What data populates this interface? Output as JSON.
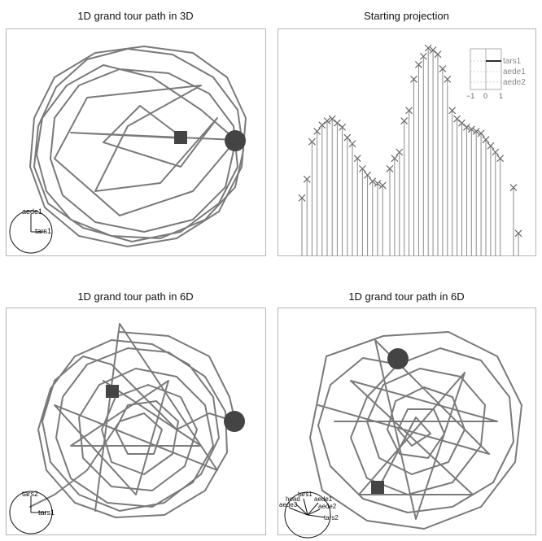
{
  "panels": [
    {
      "title": "1D grand tour path in 3D",
      "axes_labels": [
        "aede1",
        "tars1"
      ]
    },
    {
      "title": "Starting projection",
      "legend_vars": [
        "tars1",
        "aede1",
        "aede2"
      ],
      "legend_ticks": [
        "−1",
        "0",
        "1"
      ]
    },
    {
      "title": "1D grand tour path in 6D",
      "axes_labels": [
        "tars2",
        "tars1"
      ]
    },
    {
      "title": "1D grand tour path in 6D",
      "axes_labels": [
        "tars1",
        "head",
        "aede3",
        "aede1",
        "aede2",
        "tars2"
      ]
    }
  ],
  "chart_data": [
    {
      "type": "line",
      "title": "1D grand tour path in 3D",
      "markers": [
        "square",
        "circle"
      ],
      "axis_vars": [
        "aede1",
        "tars1"
      ]
    },
    {
      "type": "bar",
      "title": "Starting projection",
      "values": [
        0.28,
        0.37,
        0.55,
        0.6,
        0.63,
        0.65,
        0.66,
        0.64,
        0.62,
        0.57,
        0.54,
        0.47,
        0.42,
        0.39,
        0.36,
        0.35,
        0.34,
        0.42,
        0.47,
        0.5,
        0.65,
        0.7,
        0.85,
        0.92,
        0.96,
        1.0,
        0.99,
        0.97,
        0.9,
        0.85,
        0.7,
        0.66,
        0.64,
        0.62,
        0.61,
        0.6,
        0.59,
        0.56,
        0.53,
        0.5,
        0.47,
        0.33,
        0.11
      ],
      "legend": [
        "tars1",
        "aede1",
        "aede2"
      ],
      "legend_ticks": [
        "−1",
        "0",
        "1"
      ]
    },
    {
      "type": "line",
      "title": "1D grand tour path in 6D",
      "markers": [
        "square",
        "circle"
      ],
      "axis_vars": [
        "tars2",
        "tars1"
      ]
    },
    {
      "type": "line",
      "title": "1D grand tour path in 6D",
      "markers": [
        "circle",
        "square"
      ],
      "axis_vars": [
        "tars1",
        "head",
        "aede3",
        "aede1",
        "aede2",
        "tars2"
      ]
    }
  ],
  "colors": {
    "path": "#7a7a7a",
    "marker": "#444444",
    "frame": "#b5b5b5"
  }
}
